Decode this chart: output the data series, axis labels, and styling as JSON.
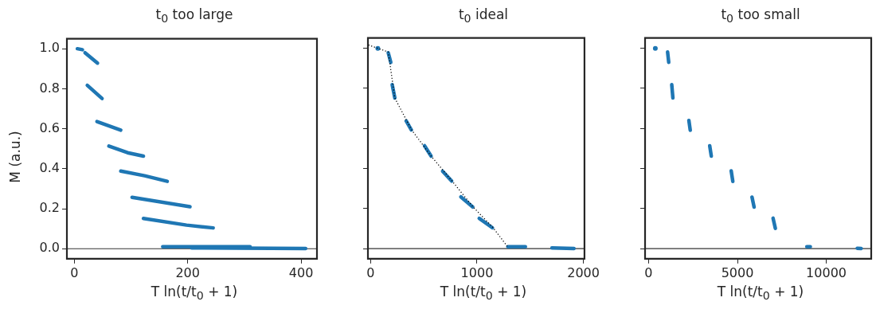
{
  "chart_data": [
    {
      "type": "line",
      "title": "t$_{0}$ too large",
      "xlabel": "T ln(t/t$_{0}$ + 1)",
      "ylabel": "M (a.u.)",
      "xlim": [
        -13,
        428
      ],
      "xticks": [
        0,
        200,
        400
      ],
      "ylim": [
        -0.05,
        1.05
      ],
      "yticks": [
        {
          "value": 0,
          "label": "0.0"
        },
        {
          "value": 0.2,
          "label": "0.2"
        },
        {
          "value": 0.4,
          "label": "0.4"
        },
        {
          "value": 0.6,
          "label": "0.6"
        },
        {
          "value": 0.8,
          "label": "0.8"
        },
        {
          "value": 1,
          "label": "1.0"
        }
      ],
      "grid": false,
      "legend": false,
      "marker": "none",
      "line_style": "solid",
      "ref_lines": [
        {
          "axis": "y",
          "value": 0,
          "color": "#333333"
        }
      ],
      "series": [
        {
          "color": "#1f77b4",
          "x": [
            5.4,
            14.4
          ],
          "values": [
            1.0,
            0.995
          ]
        },
        {
          "color": "#1f77b4",
          "x": [
            19,
            41
          ],
          "values": [
            0.98,
            0.928
          ]
        },
        {
          "color": "#1f77b4",
          "x": [
            23,
            49
          ],
          "values": [
            0.817,
            0.751
          ]
        },
        {
          "color": "#1f77b4",
          "x": [
            40,
            82
          ],
          "values": [
            0.636,
            0.593
          ]
        },
        {
          "color": "#1f77b4",
          "x": [
            61,
            94,
            122
          ],
          "values": [
            0.513,
            0.48,
            0.463
          ]
        },
        {
          "color": "#1f77b4",
          "x": [
            82,
            124,
            164
          ],
          "values": [
            0.388,
            0.365,
            0.337
          ]
        },
        {
          "color": "#1f77b4",
          "x": [
            102,
            204
          ],
          "values": [
            0.257,
            0.21
          ]
        },
        {
          "color": "#1f77b4",
          "x": [
            122,
            198,
            245
          ],
          "values": [
            0.151,
            0.118,
            0.104
          ]
        },
        {
          "color": "#1f77b4",
          "x": [
            156,
            310
          ],
          "values": [
            0.01,
            0.01
          ]
        },
        {
          "color": "#1f77b4",
          "x": [
            207,
            408
          ],
          "values": [
            0.004,
            0.001
          ]
        }
      ]
    },
    {
      "type": "line",
      "title": "t$_{0}$ ideal",
      "xlabel": "T ln(t/t$_{0}$ + 1)",
      "xlim": [
        -25,
        2010
      ],
      "xticks": [
        0,
        1000,
        2000
      ],
      "ylim": [
        -0.05,
        1.05
      ],
      "yticks": [
        0,
        0.2,
        0.4,
        0.6,
        0.8,
        1
      ],
      "tick_labels": "x",
      "grid": false,
      "legend": false,
      "marker": "none",
      "line_style": "solid",
      "ref_lines": [
        {
          "axis": "y",
          "value": 0,
          "color": "#333333"
        }
      ],
      "series": [
        {
          "color": "#000000",
          "line_style": "dotted",
          "x": [
            -20,
            166,
            228,
            383,
            569,
            766,
            963,
            1149,
            1284
          ],
          "values": [
            1.015,
            0.98,
            0.75,
            0.594,
            0.461,
            0.337,
            0.208,
            0.106,
            0.012
          ]
        },
        {
          "type": "scatter",
          "marker": "circle",
          "color": "#1f77b4",
          "x": [
            68
          ],
          "values": [
            0.998
          ]
        },
        {
          "color": "#1f77b4",
          "x": [
            166,
            190
          ],
          "values": [
            0.976,
            0.928
          ]
        },
        {
          "color": "#1f77b4",
          "x": [
            203,
            228
          ],
          "values": [
            0.817,
            0.751
          ]
        },
        {
          "color": "#1f77b4",
          "x": [
            335,
            383
          ],
          "values": [
            0.636,
            0.592
          ]
        },
        {
          "color": "#1f77b4",
          "x": [
            507,
            569
          ],
          "values": [
            0.513,
            0.461
          ]
        },
        {
          "color": "#1f77b4",
          "x": [
            677,
            762
          ],
          "values": [
            0.386,
            0.337
          ]
        },
        {
          "color": "#1f77b4",
          "x": [
            849,
            959
          ],
          "values": [
            0.258,
            0.208
          ]
        },
        {
          "color": "#1f77b4",
          "x": [
            1021,
            1145
          ],
          "values": [
            0.151,
            0.104
          ]
        },
        {
          "color": "#1f77b4",
          "x": [
            1290,
            1455
          ],
          "values": [
            0.01,
            0.01
          ]
        },
        {
          "color": "#1f77b4",
          "x": [
            1704,
            1911
          ],
          "values": [
            0.004,
            0.001
          ]
        }
      ]
    },
    {
      "type": "line",
      "title": "t$_{0}$ too small",
      "xlabel": "T ln(t/t$_{0}$ + 1)",
      "xlim": [
        -200,
        12530
      ],
      "xticks": [
        0,
        5000,
        10000
      ],
      "ylim": [
        -0.05,
        1.05
      ],
      "yticks": [
        0,
        0.2,
        0.4,
        0.6,
        0.8,
        1
      ],
      "tick_labels": "x",
      "grid": false,
      "legend": false,
      "marker": "none",
      "line_style": "solid",
      "ref_lines": [
        {
          "axis": "y",
          "value": 0,
          "color": "#333333"
        }
      ],
      "series": [
        {
          "type": "scatter",
          "marker": "circle",
          "color": "#1f77b4",
          "x": [
            378
          ],
          "values": [
            0.998
          ]
        },
        {
          "color": "#1f77b4",
          "x": [
            1068,
            1133
          ],
          "values": [
            0.98,
            0.928
          ]
        },
        {
          "color": "#1f77b4",
          "x": [
            1302,
            1367
          ],
          "values": [
            0.817,
            0.751
          ]
        },
        {
          "color": "#1f77b4",
          "x": [
            2266,
            2344
          ],
          "values": [
            0.639,
            0.59
          ]
        },
        {
          "color": "#1f77b4",
          "x": [
            3438,
            3529
          ],
          "values": [
            0.513,
            0.461
          ]
        },
        {
          "color": "#1f77b4",
          "x": [
            4648,
            4740
          ],
          "values": [
            0.388,
            0.335
          ]
        },
        {
          "color": "#1f77b4",
          "x": [
            5820,
            5938
          ],
          "values": [
            0.257,
            0.207
          ]
        },
        {
          "color": "#1f77b4",
          "x": [
            7005,
            7135
          ],
          "values": [
            0.152,
            0.101
          ]
        },
        {
          "color": "#1f77b4",
          "x": [
            8906,
            9102
          ],
          "values": [
            0.01,
            0.01
          ]
        },
        {
          "color": "#1f77b4",
          "x": [
            11745,
            11966
          ],
          "values": [
            0.002,
            0.001
          ]
        }
      ]
    }
  ]
}
